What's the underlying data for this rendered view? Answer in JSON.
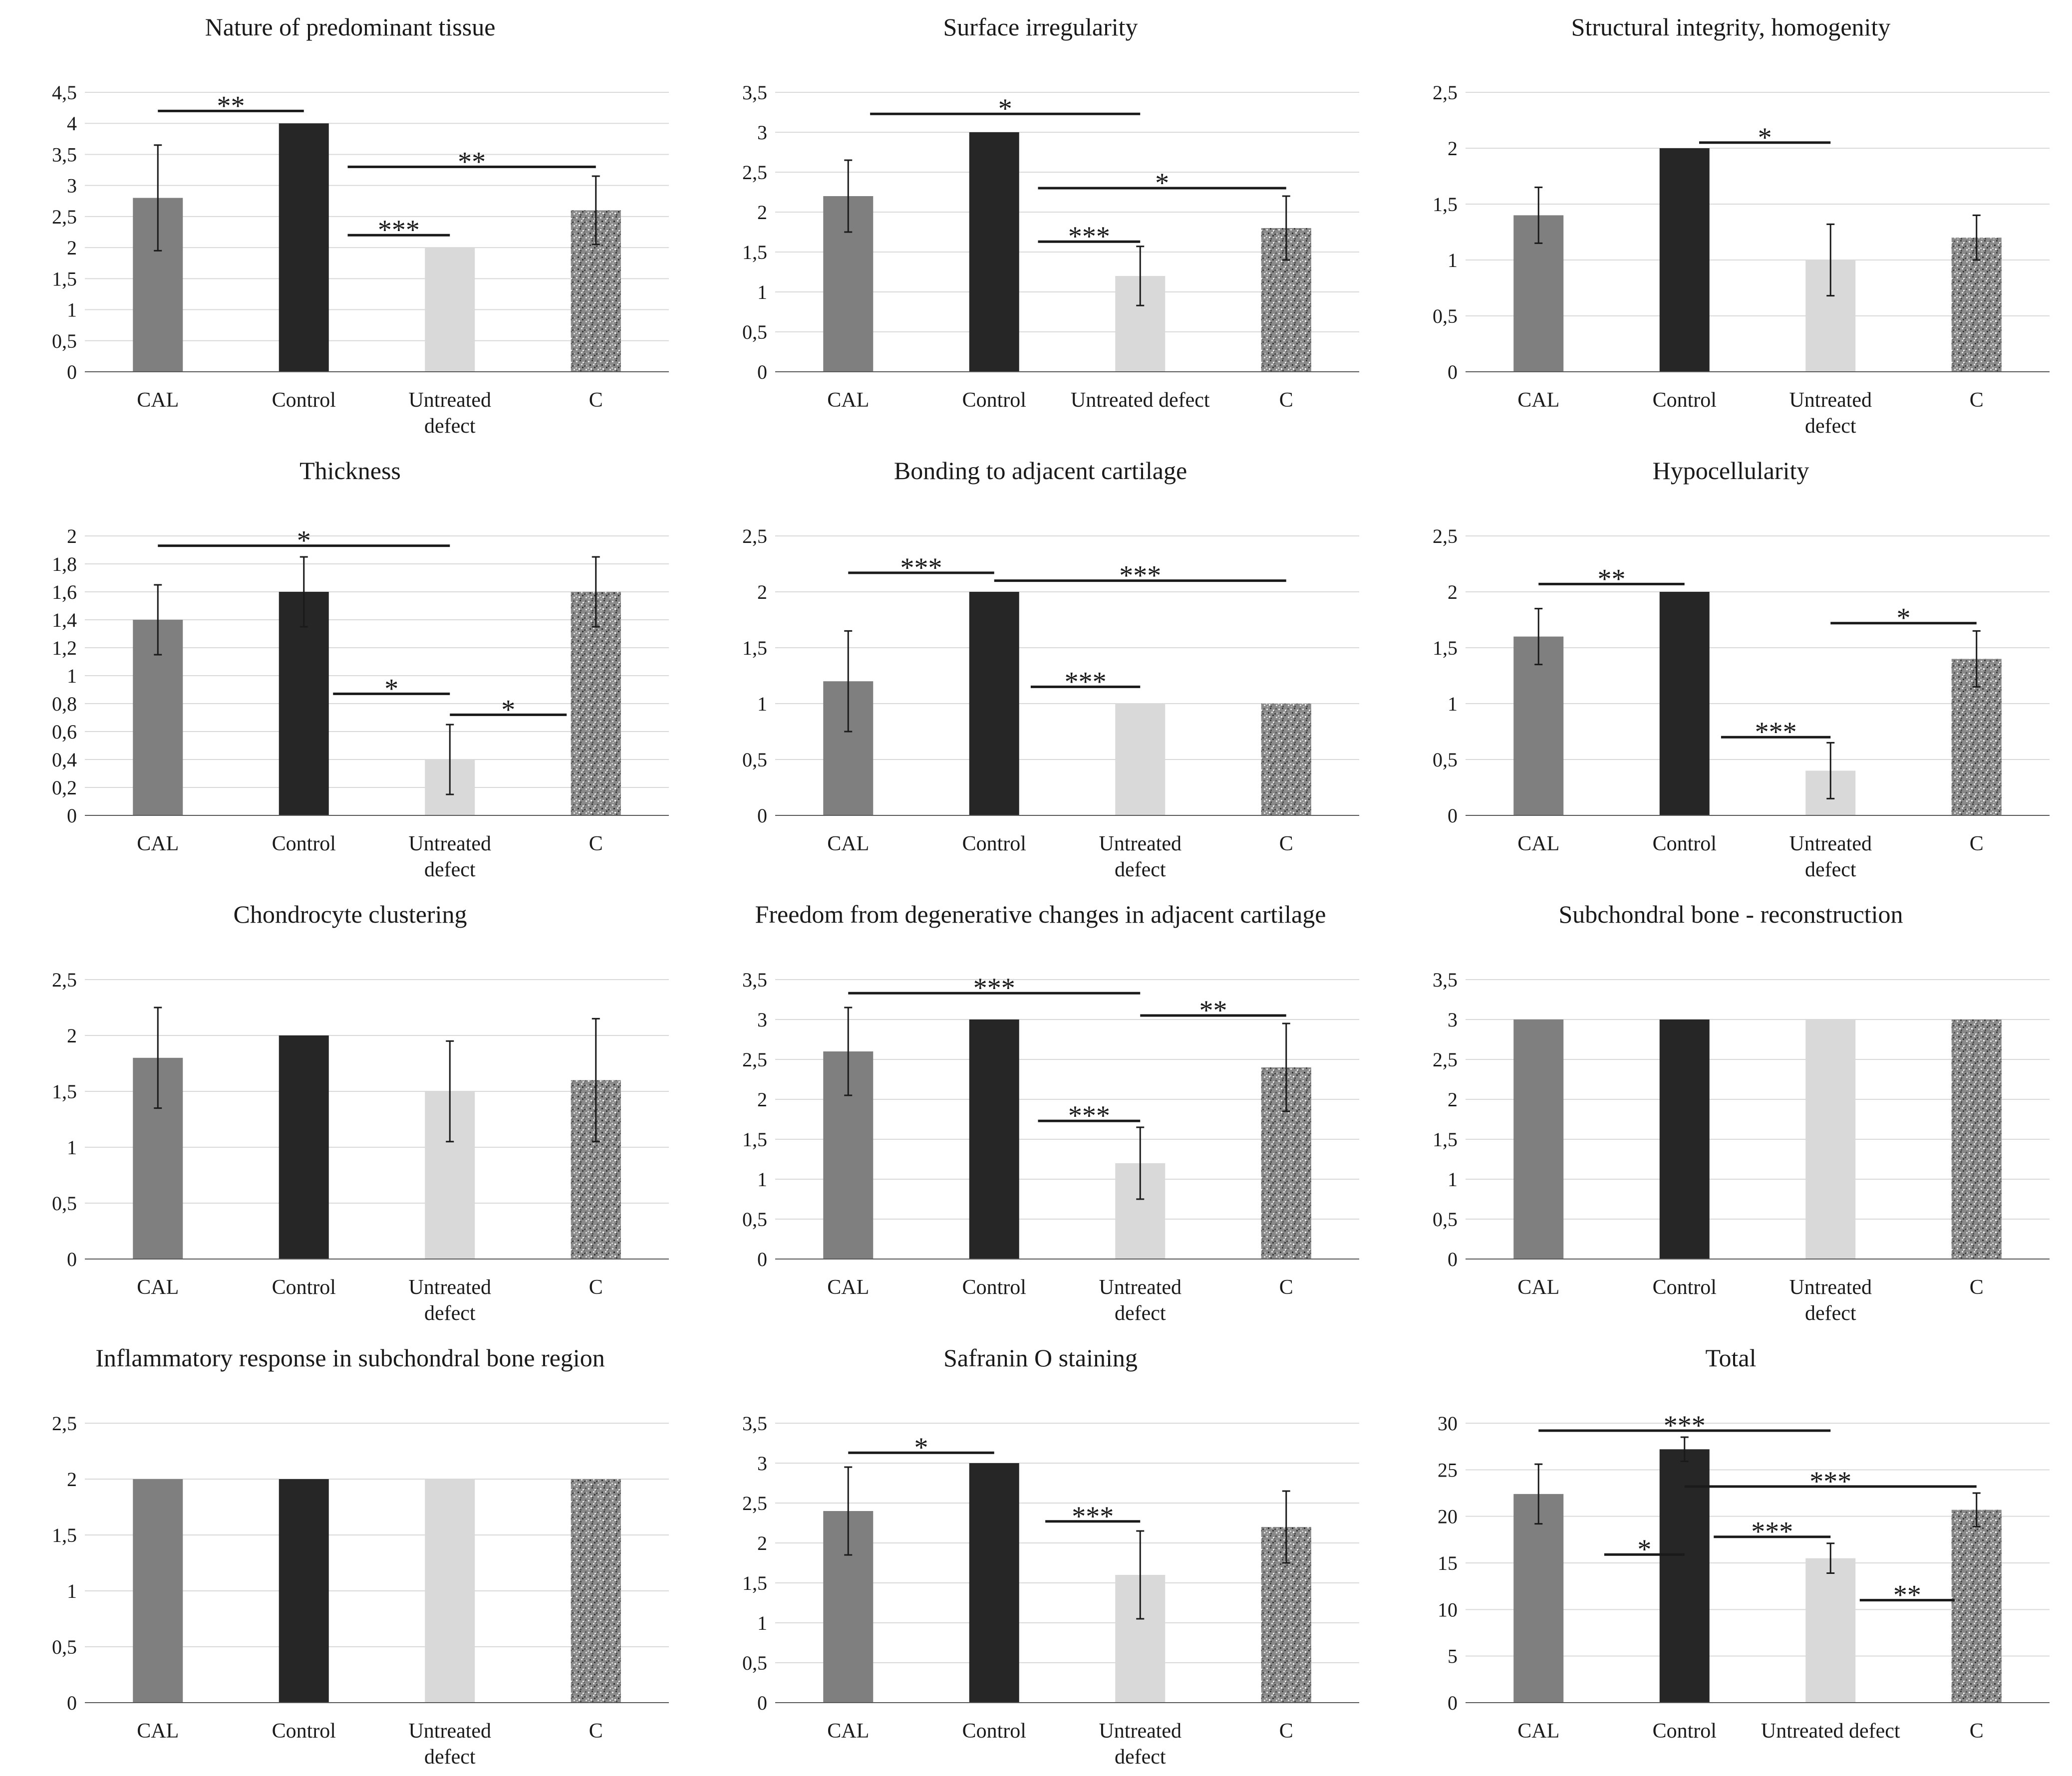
{
  "colors": {
    "CAL": "#7f7f7f",
    "Control": "#262626",
    "Untreated defect": "#d9d9d9",
    "C": "speckled-gray",
    "grid": "#d9d9d9",
    "axis": "#595959"
  },
  "chart_data": [
    {
      "type": "bar",
      "title": "Nature of predominant tissue",
      "categories": [
        "CAL",
        "Control",
        "Untreated\ndefect",
        "C"
      ],
      "values": [
        2.8,
        4,
        2,
        2.6
      ],
      "errors": [
        0.85,
        0,
        0,
        0.55
      ],
      "ylim": [
        0,
        4.5
      ],
      "yticks": [
        "0",
        "0,5",
        "1",
        "1,5",
        "2",
        "2,5",
        "3",
        "3,5",
        "4",
        "4,5"
      ],
      "significance": [
        {
          "from": 0,
          "to": 1,
          "y": 4.2,
          "label": "**"
        },
        {
          "from": 1.3,
          "to": 3.0,
          "y": 3.3,
          "label": "**"
        },
        {
          "from": 1.3,
          "to": 2.0,
          "y": 2.2,
          "label": "***"
        }
      ]
    },
    {
      "type": "bar",
      "title": "Surface irregularity",
      "categories": [
        "CAL",
        "Control",
        "Untreated defect",
        "C"
      ],
      "values": [
        2.2,
        3,
        1.2,
        1.8
      ],
      "errors": [
        0.45,
        0,
        0.37,
        0.4
      ],
      "ylim": [
        0,
        3.5
      ],
      "yticks": [
        "0",
        "0,5",
        "1",
        "1,5",
        "2",
        "2,5",
        "3",
        "3,5"
      ],
      "significance": [
        {
          "from": 0.15,
          "to": 2.0,
          "y": 3.23,
          "label": "*"
        },
        {
          "from": 1.3,
          "to": 3.0,
          "y": 2.3,
          "label": "*"
        },
        {
          "from": 1.3,
          "to": 2.0,
          "y": 1.63,
          "label": "***"
        }
      ]
    },
    {
      "type": "bar",
      "title": "Structural integrity, homogenity",
      "categories": [
        "CAL",
        "Control",
        "Untreated\ndefect",
        "C"
      ],
      "values": [
        1.4,
        2,
        1,
        1.2
      ],
      "errors": [
        0.25,
        0,
        0.32,
        0.2
      ],
      "ylim": [
        0,
        2.5
      ],
      "yticks": [
        "0",
        "0,5",
        "1",
        "1,5",
        "2",
        "2,5"
      ],
      "significance": [
        {
          "from": 1.1,
          "to": 2.0,
          "y": 2.05,
          "label": "*"
        }
      ]
    },
    {
      "type": "bar",
      "title": "Thickness",
      "categories": [
        "CAL",
        "Control",
        "Untreated\ndefect",
        "C"
      ],
      "values": [
        1.4,
        1.6,
        0.4,
        1.6
      ],
      "errors": [
        0.25,
        0.25,
        0.25,
        0.25
      ],
      "ylim": [
        0,
        2
      ],
      "yticks": [
        "0",
        "0,2",
        "0,4",
        "0,6",
        "0,8",
        "1",
        "1,2",
        "1,4",
        "1,6",
        "1,8",
        "2"
      ],
      "significance": [
        {
          "from": 0,
          "to": 2.0,
          "y": 1.93,
          "label": "*"
        },
        {
          "from": 1.2,
          "to": 2.0,
          "y": 0.87,
          "label": "*"
        },
        {
          "from": 2.0,
          "to": 2.8,
          "y": 0.72,
          "label": "*"
        }
      ]
    },
    {
      "type": "bar",
      "title": "Bonding to adjacent cartilage",
      "categories": [
        "CAL",
        "Control",
        "Untreated\ndefect",
        "C"
      ],
      "values": [
        1.2,
        2,
        1,
        1
      ],
      "errors": [
        0.45,
        0,
        0,
        0
      ],
      "ylim": [
        0,
        2.5
      ],
      "yticks": [
        "0",
        "0,5",
        "1",
        "1,5",
        "2",
        "2,5"
      ],
      "significance": [
        {
          "from": 0,
          "to": 1,
          "y": 2.17,
          "label": "***"
        },
        {
          "from": 1,
          "to": 3.0,
          "y": 2.1,
          "label": "***"
        },
        {
          "from": 1.25,
          "to": 2.0,
          "y": 1.15,
          "label": "***"
        }
      ]
    },
    {
      "type": "bar",
      "title": "Hypocellularity",
      "categories": [
        "CAL",
        "Control",
        "Untreated\ndefect",
        "C"
      ],
      "values": [
        1.6,
        2,
        0.4,
        1.4
      ],
      "errors": [
        0.25,
        0,
        0.25,
        0.25
      ],
      "ylim": [
        0,
        2.5
      ],
      "yticks": [
        "0",
        "0,5",
        "1",
        "1,5",
        "2",
        "2,5"
      ],
      "significance": [
        {
          "from": 0,
          "to": 1,
          "y": 2.07,
          "label": "**"
        },
        {
          "from": 2.0,
          "to": 3.0,
          "y": 1.72,
          "label": "*"
        },
        {
          "from": 1.25,
          "to": 2.0,
          "y": 0.7,
          "label": "***"
        }
      ]
    },
    {
      "type": "bar",
      "title": "Chondrocyte clustering",
      "categories": [
        "CAL",
        "Control",
        "Untreated\ndefect",
        "C"
      ],
      "values": [
        1.8,
        2,
        1.5,
        1.6
      ],
      "errors": [
        0.45,
        0,
        0.45,
        0.55
      ],
      "ylim": [
        0,
        2.5
      ],
      "yticks": [
        "0",
        "0,5",
        "1",
        "1,5",
        "2",
        "2,5"
      ],
      "significance": []
    },
    {
      "type": "bar",
      "title": "Freedom from degenerative changes in adjacent cartilage",
      "categories": [
        "CAL",
        "Control",
        "Untreated\ndefect",
        "C"
      ],
      "values": [
        2.6,
        3,
        1.2,
        2.4
      ],
      "errors": [
        0.55,
        0,
        0.45,
        0.55
      ],
      "ylim": [
        0,
        3.5
      ],
      "yticks": [
        "0",
        "0,5",
        "1",
        "1,5",
        "2",
        "2,5",
        "3",
        "3,5"
      ],
      "significance": [
        {
          "from": 0,
          "to": 2.0,
          "y": 3.33,
          "label": "***"
        },
        {
          "from": 2.0,
          "to": 3.0,
          "y": 3.05,
          "label": "**"
        },
        {
          "from": 1.3,
          "to": 2.0,
          "y": 1.73,
          "label": "***"
        }
      ]
    },
    {
      "type": "bar",
      "title": "Subchondral bone - reconstruction",
      "categories": [
        "CAL",
        "Control",
        "Untreated\ndefect",
        "C"
      ],
      "values": [
        3,
        3,
        3,
        3
      ],
      "errors": [
        0,
        0,
        0,
        0
      ],
      "ylim": [
        0,
        3.5
      ],
      "yticks": [
        "0",
        "0,5",
        "1",
        "1,5",
        "2",
        "2,5",
        "3",
        "3,5"
      ],
      "significance": []
    },
    {
      "type": "bar",
      "title": "Inflammatory response in subchondral bone region",
      "categories": [
        "CAL",
        "Control",
        "Untreated\ndefect",
        "C"
      ],
      "values": [
        2,
        2,
        2,
        2
      ],
      "errors": [
        0,
        0,
        0,
        0
      ],
      "ylim": [
        0,
        2.5
      ],
      "yticks": [
        "0",
        "0,5",
        "1",
        "1,5",
        "2",
        "2,5"
      ],
      "significance": []
    },
    {
      "type": "bar",
      "title": "Safranin O staining",
      "categories": [
        "CAL",
        "Control",
        "Untreated\ndefect",
        "C"
      ],
      "values": [
        2.4,
        3,
        1.6,
        2.2
      ],
      "errors": [
        0.55,
        0,
        0.55,
        0.45
      ],
      "ylim": [
        0,
        3.5
      ],
      "yticks": [
        "0",
        "0,5",
        "1",
        "1,5",
        "2",
        "2,5",
        "3",
        "3,5"
      ],
      "significance": [
        {
          "from": 0,
          "to": 1,
          "y": 3.13,
          "label": "*"
        },
        {
          "from": 1.35,
          "to": 2.0,
          "y": 2.27,
          "label": "***"
        }
      ]
    },
    {
      "type": "bar",
      "title": "Total",
      "categories": [
        "CAL",
        "Control",
        "Untreated defect",
        "C"
      ],
      "values": [
        22.4,
        27.2,
        15.5,
        20.7
      ],
      "errors": [
        3.2,
        1.3,
        1.6,
        1.8
      ],
      "ylim": [
        0,
        30
      ],
      "yticks": [
        "0",
        "5",
        "10",
        "15",
        "20",
        "25",
        "30"
      ],
      "significance": [
        {
          "from": 0,
          "to": 2.0,
          "y": 29.2,
          "label": "***"
        },
        {
          "from": 1.0,
          "to": 3.0,
          "y": 23.2,
          "label": "***"
        },
        {
          "from": 0.45,
          "to": 1.0,
          "y": 15.9,
          "label": "*"
        },
        {
          "from": 1.2,
          "to": 2.0,
          "y": 17.8,
          "label": "***"
        },
        {
          "from": 2.2,
          "to": 2.85,
          "y": 11.0,
          "label": "**"
        }
      ]
    }
  ]
}
